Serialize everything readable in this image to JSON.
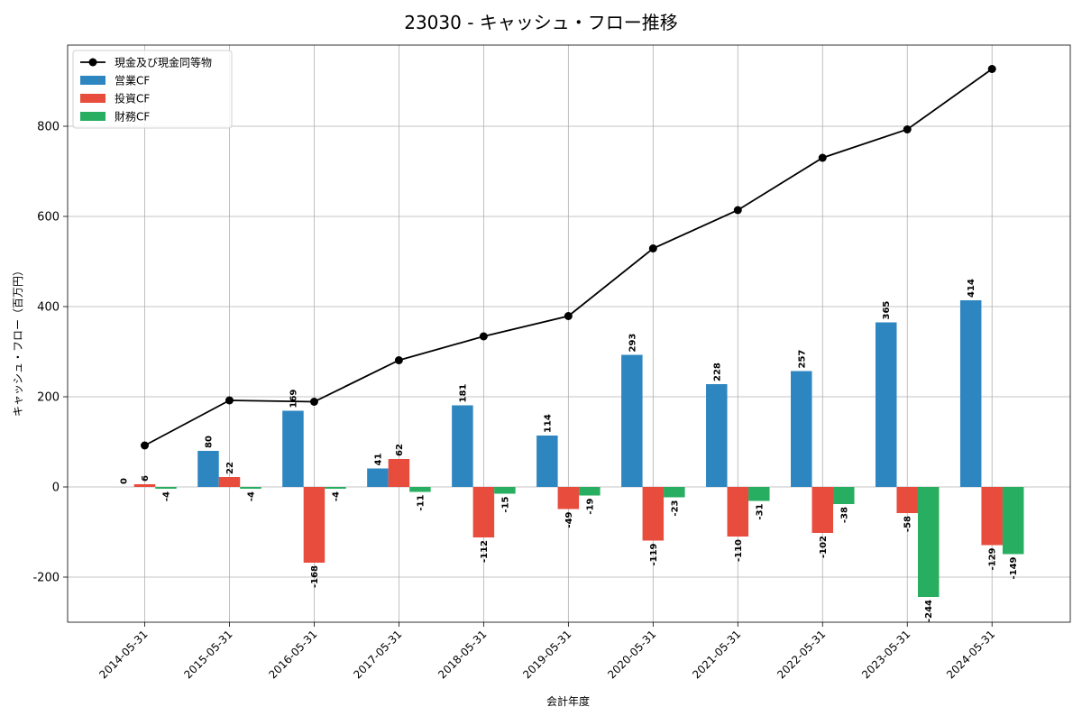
{
  "chart_data": {
    "type": "bar",
    "title": "23030 - キャッシュ・フロー推移",
    "xlabel": "会計年度",
    "ylabel": "キャッシュ・フロー（百万円）",
    "ylim": [
      -300,
      980
    ],
    "yticks": [
      -200,
      0,
      200,
      400,
      600,
      800
    ],
    "grid": true,
    "legend_position": "top-left",
    "categories": [
      "2014-05-31",
      "2015-05-31",
      "2016-05-31",
      "2017-05-31",
      "2018-05-31",
      "2019-05-31",
      "2020-05-31",
      "2021-05-31",
      "2022-05-31",
      "2023-05-31",
      "2024-05-31"
    ],
    "series": [
      {
        "name": "営業CF",
        "kind": "bar",
        "color": "#2e86c1",
        "values": [
          0,
          80,
          169,
          41,
          181,
          114,
          293,
          228,
          257,
          365,
          414
        ]
      },
      {
        "name": "投資CF",
        "kind": "bar",
        "color": "#e74c3c",
        "values": [
          6,
          22,
          -168,
          62,
          -112,
          -49,
          -119,
          -110,
          -102,
          -58,
          -129
        ]
      },
      {
        "name": "財務CF",
        "kind": "bar",
        "color": "#27ae60",
        "values": [
          -4,
          -4,
          -4,
          -11,
          -15,
          -19,
          -23,
          -31,
          -38,
          -244,
          -149
        ]
      },
      {
        "name": "現金及び現金同等物",
        "kind": "line",
        "color": "#000000",
        "values": [
          92,
          192,
          189,
          281,
          334,
          379,
          529,
          614,
          730,
          793,
          927
        ]
      }
    ]
  }
}
